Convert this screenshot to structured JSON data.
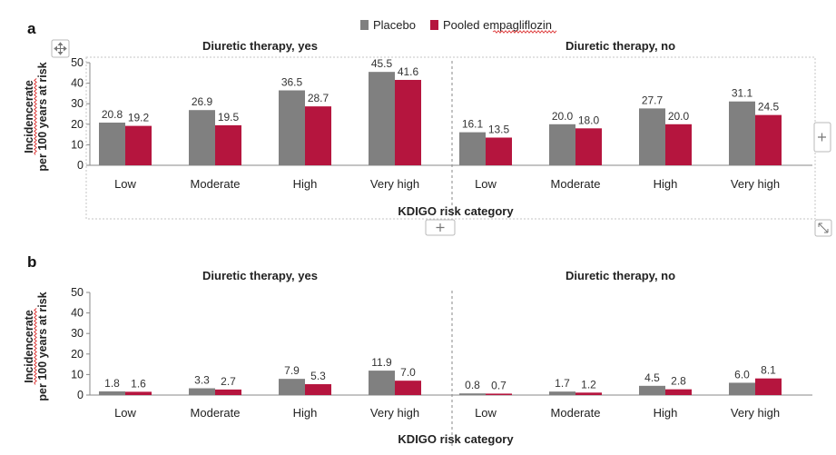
{
  "legend": {
    "items": [
      {
        "name": "Placebo",
        "color": "#808080"
      },
      {
        "name": "Pooled empagliflozin",
        "color": "#b5153e"
      }
    ]
  },
  "icons": {
    "move": "move-handle-icon",
    "expand": "plus-icon",
    "resize": "resize-diagonal-icon"
  },
  "chart_data": [
    {
      "panel": "a",
      "type": "bar",
      "ylabel_line1": "Incidencerate",
      "ylabel_line2": "per 100 years at risk",
      "xlabel": "KDIGO risk category",
      "ylim": [
        0,
        50
      ],
      "yticks": [
        0,
        10,
        20,
        30,
        40,
        50
      ],
      "groups": [
        {
          "title": "Diuretic therapy, yes",
          "categories": [
            "Low",
            "Moderate",
            "High",
            "Very high"
          ],
          "series": [
            {
              "name": "Placebo",
              "values": [
                20.8,
                26.9,
                36.5,
                45.5
              ]
            },
            {
              "name": "Pooled empagliflozin",
              "values": [
                19.2,
                19.5,
                28.7,
                41.6
              ]
            }
          ]
        },
        {
          "title": "Diuretic therapy,  no",
          "categories": [
            "Low",
            "Moderate",
            "High",
            "Very high"
          ],
          "series": [
            {
              "name": "Placebo",
              "values": [
                16.1,
                20.0,
                27.7,
                31.1
              ]
            },
            {
              "name": "Pooled empagliflozin",
              "values": [
                13.5,
                18.0,
                20.0,
                24.5
              ]
            }
          ]
        }
      ]
    },
    {
      "panel": "b",
      "type": "bar",
      "ylabel_line1": "Incidencerate",
      "ylabel_line2": "per 100 years at risk",
      "xlabel": "KDIGO risk category",
      "ylim": [
        0,
        50
      ],
      "yticks": [
        0,
        10,
        20,
        30,
        40,
        50
      ],
      "groups": [
        {
          "title": "Diuretic therapy, yes",
          "categories": [
            "Low",
            "Moderate",
            "High",
            "Very high"
          ],
          "series": [
            {
              "name": "Placebo",
              "values": [
                1.8,
                3.3,
                7.9,
                11.9
              ]
            },
            {
              "name": "Pooled empagliflozin",
              "values": [
                1.6,
                2.7,
                5.3,
                7.0
              ]
            }
          ]
        },
        {
          "title": "Diuretic therapy,  no",
          "categories": [
            "Low",
            "Moderate",
            "High",
            "Very high"
          ],
          "series": [
            {
              "name": "Placebo",
              "values": [
                0.8,
                1.7,
                4.5,
                6.0
              ]
            },
            {
              "name": "Pooled empagliflozin",
              "values": [
                0.7,
                1.2,
                2.8,
                8.1
              ]
            }
          ]
        }
      ]
    }
  ]
}
